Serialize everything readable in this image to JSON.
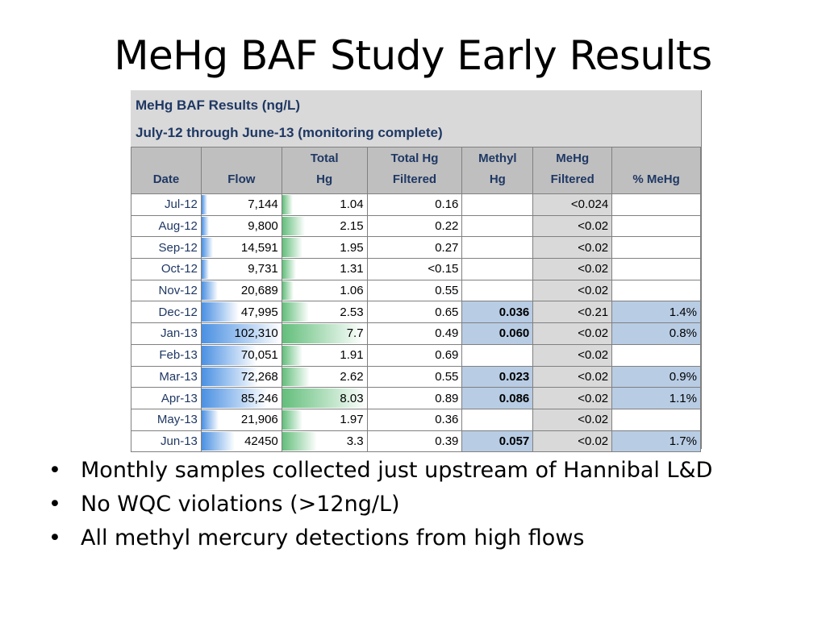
{
  "title": "MeHg BAF Study Early Results",
  "table": {
    "title_line1": "MeHg BAF Results (ng/L)",
    "title_line2": "July-12 through June-13 (monitoring complete)",
    "headers": [
      [
        "Date"
      ],
      [
        "Flow"
      ],
      [
        "Total",
        "Hg"
      ],
      [
        "Total Hg",
        "Filtered"
      ],
      [
        "Methyl",
        "Hg"
      ],
      [
        "MeHg",
        "Filtered"
      ],
      [
        "% MeHg"
      ]
    ],
    "bar_colors": {
      "flow": "#4a90e2",
      "total_hg": "#63be7b"
    },
    "rows": [
      {
        "date": "Jul-12",
        "flow": "7,144",
        "flow_value": 7144,
        "total_hg": "1.04",
        "total_hg_value": 1.04,
        "total_hg_filtered": "0.16",
        "methyl_hg": "",
        "mehg_filtered": "<0.024",
        "pct_mehg": ""
      },
      {
        "date": "Aug-12",
        "flow": "9,800",
        "flow_value": 9800,
        "total_hg": "2.15",
        "total_hg_value": 2.15,
        "total_hg_filtered": "0.22",
        "methyl_hg": "",
        "mehg_filtered": "<0.02",
        "pct_mehg": ""
      },
      {
        "date": "Sep-12",
        "flow": "14,591",
        "flow_value": 14591,
        "total_hg": "1.95",
        "total_hg_value": 1.95,
        "total_hg_filtered": "0.27",
        "methyl_hg": "",
        "mehg_filtered": "<0.02",
        "pct_mehg": ""
      },
      {
        "date": "Oct-12",
        "flow": "9,731",
        "flow_value": 9731,
        "total_hg": "1.31",
        "total_hg_value": 1.31,
        "total_hg_filtered": "<0.15",
        "methyl_hg": "",
        "mehg_filtered": "<0.02",
        "pct_mehg": ""
      },
      {
        "date": "Nov-12",
        "flow": "20,689",
        "flow_value": 20689,
        "total_hg": "1.06",
        "total_hg_value": 1.06,
        "total_hg_filtered": "0.55",
        "methyl_hg": "",
        "mehg_filtered": "<0.02",
        "pct_mehg": ""
      },
      {
        "date": "Dec-12",
        "flow": "47,995",
        "flow_value": 47995,
        "total_hg": "2.53",
        "total_hg_value": 2.53,
        "total_hg_filtered": "0.65",
        "methyl_hg": "0.036",
        "mehg_filtered": "<0.21",
        "pct_mehg": "1.4%"
      },
      {
        "date": "Jan-13",
        "flow": "102,310",
        "flow_value": 102310,
        "total_hg": "7.7",
        "total_hg_value": 7.7,
        "total_hg_filtered": "0.49",
        "methyl_hg": "0.060",
        "mehg_filtered": "<0.02",
        "pct_mehg": "0.8%"
      },
      {
        "date": "Feb-13",
        "flow": "70,051",
        "flow_value": 70051,
        "total_hg": "1.91",
        "total_hg_value": 1.91,
        "total_hg_filtered": "0.69",
        "methyl_hg": "",
        "mehg_filtered": "<0.02",
        "pct_mehg": ""
      },
      {
        "date": "Mar-13",
        "flow": "72,268",
        "flow_value": 72268,
        "total_hg": "2.62",
        "total_hg_value": 2.62,
        "total_hg_filtered": "0.55",
        "methyl_hg": "0.023",
        "mehg_filtered": "<0.02",
        "pct_mehg": "0.9%"
      },
      {
        "date": "Apr-13",
        "flow": "85,246",
        "flow_value": 85246,
        "total_hg": "8.03",
        "total_hg_value": 8.03,
        "total_hg_filtered": "0.89",
        "methyl_hg": "0.086",
        "mehg_filtered": "<0.02",
        "pct_mehg": "1.1%"
      },
      {
        "date": "May-13",
        "flow": "21,906",
        "flow_value": 21906,
        "total_hg": "1.97",
        "total_hg_value": 1.97,
        "total_hg_filtered": "0.36",
        "methyl_hg": "",
        "mehg_filtered": "<0.02",
        "pct_mehg": ""
      },
      {
        "date": "Jun-13",
        "flow": "42450",
        "flow_value": 42450,
        "total_hg": "3.3",
        "total_hg_value": 3.3,
        "total_hg_filtered": "0.39",
        "methyl_hg": "0.057",
        "mehg_filtered": "<0.02",
        "pct_mehg": "1.7%"
      }
    ]
  },
  "bullets": [
    "Monthly samples collected just upstream of Hannibal L&D",
    "No WQC violations (>12ng/L)",
    "All methyl mercury detections from high flows"
  ]
}
